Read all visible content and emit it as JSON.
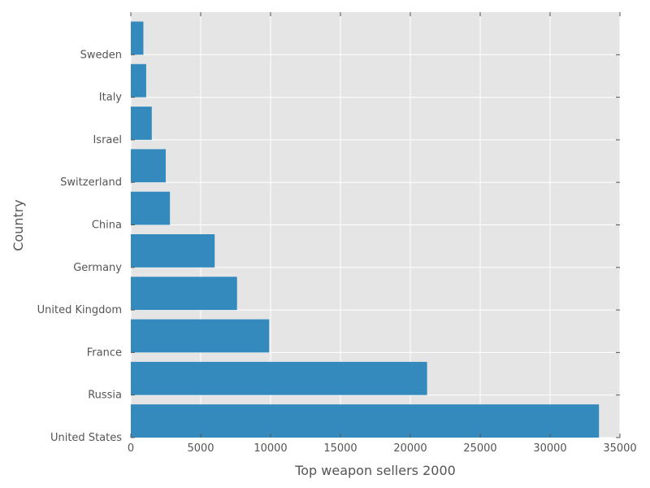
{
  "chart_data": {
    "type": "bar",
    "orientation": "horizontal",
    "title": "",
    "xlabel": "Top weapon sellers 2000",
    "ylabel": "Country",
    "categories": [
      "United States",
      "Russia",
      "France",
      "United Kingdom",
      "Germany",
      "China",
      "Switzerland",
      "Israel",
      "Italy",
      "Sweden"
    ],
    "values": [
      33500,
      21200,
      9900,
      7600,
      6000,
      2800,
      2500,
      1500,
      1100,
      900
    ],
    "xlim": [
      0,
      35000
    ],
    "xticks": [
      "0",
      "5000",
      "10000",
      "15000",
      "20000",
      "25000",
      "30000",
      "35000"
    ],
    "grid": true,
    "bar_color": "#348ABD",
    "background_color": "#E5E5E5"
  }
}
